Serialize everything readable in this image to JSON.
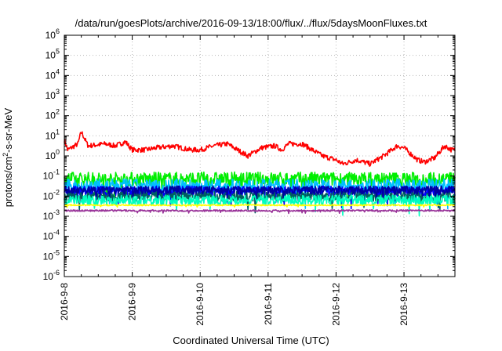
{
  "chart_data": {
    "type": "line",
    "title": "/data/run/goesPlots/archive/2016-09-13/18:00/flux/../flux/5daysMoonFluxes.txt",
    "xlabel": "Coordinated Universal Time (UTC)",
    "ylabel": {
      "base": "protons/cm",
      "sup": "2",
      "rest": "-s-sr-MeV"
    },
    "x_range": [
      "2016-09-08T00:00",
      "2016-09-13T18:00"
    ],
    "x_ticks": [
      "2016-9-8",
      "2016-9-9",
      "2016-9-10",
      "2016-9-11",
      "2016-9-12",
      "2016-9-13"
    ],
    "y_scale": "log",
    "y_exponent_range": [
      -6,
      6
    ],
    "y_tick_base": "10",
    "y_tick_exponents": [
      "-6",
      "-5",
      "-4",
      "-3",
      "-2",
      "-1",
      "0",
      "1",
      "2",
      "3",
      "4",
      "5",
      "6"
    ],
    "grid": true,
    "legend": "none",
    "series": [
      {
        "color": "#ff0000",
        "mean_log": 0.2,
        "amplitude": 0.4,
        "anchors": [
          [
            0,
            0.8
          ],
          [
            0.05,
            0.3
          ],
          [
            0.1,
            0.4
          ],
          [
            0.2,
            0.6
          ],
          [
            0.25,
            1.2
          ],
          [
            0.35,
            0.5
          ],
          [
            0.6,
            0.6
          ],
          [
            0.75,
            0.5
          ],
          [
            0.9,
            0.7
          ],
          [
            1.0,
            0.3
          ],
          [
            1.2,
            0.3
          ],
          [
            1.35,
            0.4
          ],
          [
            1.6,
            0.5
          ],
          [
            1.85,
            0.3
          ],
          [
            2.0,
            0.3
          ],
          [
            2.2,
            0.5
          ],
          [
            2.4,
            0.6
          ],
          [
            2.5,
            0.4
          ],
          [
            2.7,
            0.0
          ],
          [
            2.9,
            0.4
          ],
          [
            3.1,
            0.5
          ],
          [
            3.2,
            0.3
          ],
          [
            3.3,
            0.6
          ],
          [
            3.5,
            0.6
          ],
          [
            3.65,
            0.3
          ],
          [
            3.8,
            0.0
          ],
          [
            4.0,
            -0.2
          ],
          [
            4.1,
            -0.4
          ],
          [
            4.3,
            -0.2
          ],
          [
            4.5,
            -0.4
          ],
          [
            4.7,
            0.0
          ],
          [
            4.9,
            0.5
          ],
          [
            5.0,
            0.4
          ],
          [
            5.2,
            -0.2
          ],
          [
            5.3,
            -0.3
          ],
          [
            5.45,
            -0.1
          ],
          [
            5.6,
            0.5
          ],
          [
            5.7,
            0.3
          ],
          [
            5.75,
            0.3
          ]
        ]
      },
      {
        "color": "#00ee00",
        "mean_log": -1.15,
        "amplitude": 0.35
      },
      {
        "color": "#00bfff",
        "mean_log": -1.5,
        "amplitude": 0.35
      },
      {
        "color": "#0000ff",
        "mean_log": -1.75,
        "amplitude": 0.25
      },
      {
        "color": "#006060",
        "mean_log": -2.0,
        "amplitude": 0.25
      },
      {
        "color": "#0000a0",
        "mean_log": -1.7,
        "amplitude": 0.2
      },
      {
        "color": "#00ffc0",
        "mean_log": -2.2,
        "amplitude": 0.25
      },
      {
        "color": "#ffff00",
        "mean_log": -2.45,
        "amplitude": 0.03
      },
      {
        "color": "#993399",
        "mean_log": -2.72,
        "amplitude": 0.04
      }
    ]
  }
}
